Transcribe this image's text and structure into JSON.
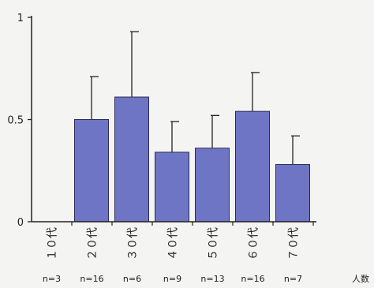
{
  "chart_data": {
    "type": "bar",
    "categories": [
      "１０代",
      "２０代",
      "３０代",
      "４０代",
      "５０代",
      "６０代",
      "７０代"
    ],
    "values": [
      0,
      0.5,
      0.61,
      0.34,
      0.36,
      0.54,
      0.28
    ],
    "error_upper": [
      0,
      0.71,
      0.93,
      0.49,
      0.52,
      0.73,
      0.42
    ],
    "n_labels": [
      "n=3",
      "n=16",
      "n=6",
      "n=9",
      "n=13",
      "n=16",
      "n=7"
    ],
    "n_axis_label": "人数",
    "yticks": [
      {
        "value": 0,
        "label": "0"
      },
      {
        "value": 0.5,
        "label": "0.5"
      },
      {
        "value": 1,
        "label": "1"
      }
    ],
    "ylim": [
      0,
      1
    ],
    "grid": false,
    "legend": "none",
    "colors": {
      "bar_fill": "#6e75c4",
      "bar_stroke": "#2a2a55",
      "axis": "#222222"
    }
  }
}
